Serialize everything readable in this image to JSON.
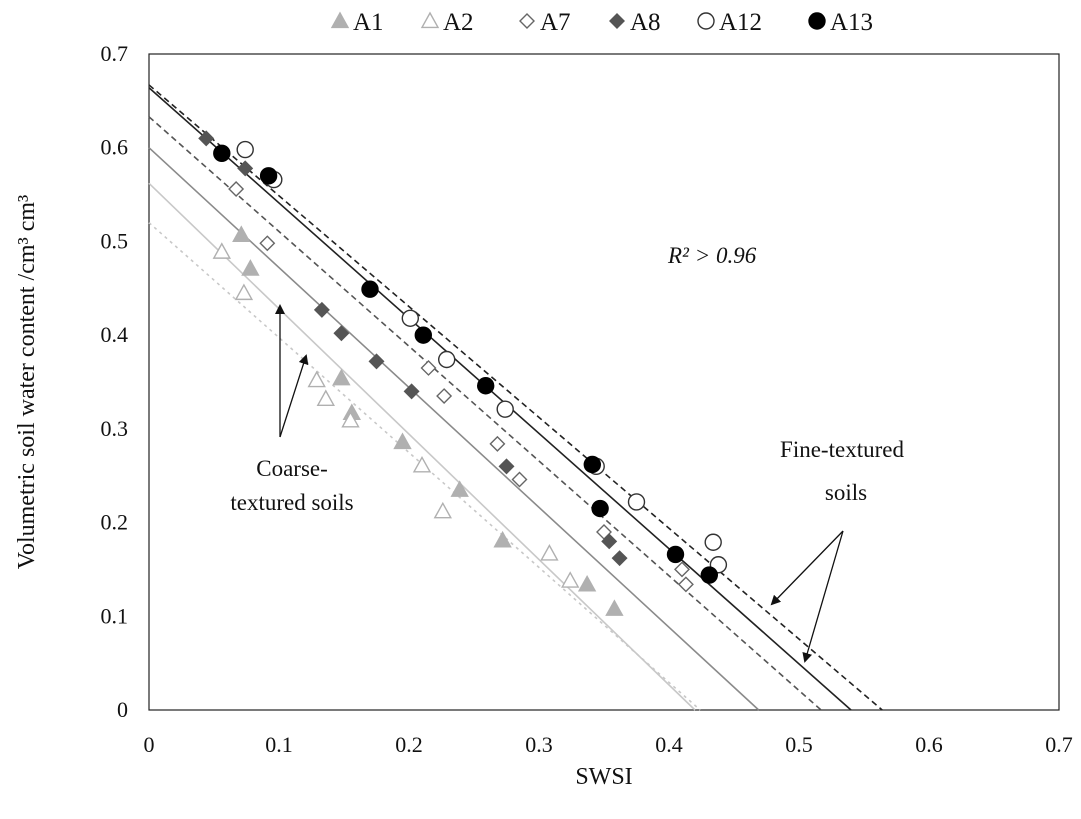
{
  "chart_data": {
    "type": "scatter",
    "xlabel": "SWSI",
    "ylabel": "Volumetric soil water content /cm³ cm³",
    "xlim": [
      0,
      0.7
    ],
    "ylim": [
      0,
      0.7
    ],
    "xticks": [
      "0",
      "0.1",
      "0.2",
      "0.3",
      "0.4",
      "0.5",
      "0.6",
      "0.7"
    ],
    "yticks": [
      "0",
      "0.1",
      "0.2",
      "0.3",
      "0.4",
      "0.5",
      "0.6",
      "0.7"
    ],
    "grid": false,
    "legend_position": "top",
    "series": [
      {
        "name": "A1",
        "marker": "triangle-filled",
        "color": "#b0b0b0",
        "points": [
          [
            0.071,
            0.507
          ],
          [
            0.078,
            0.471
          ],
          [
            0.148,
            0.354
          ],
          [
            0.156,
            0.317
          ],
          [
            0.195,
            0.286
          ],
          [
            0.239,
            0.235
          ],
          [
            0.272,
            0.181
          ],
          [
            0.337,
            0.134
          ],
          [
            0.358,
            0.108
          ]
        ]
      },
      {
        "name": "A2",
        "marker": "triangle-open",
        "color": "#b0b0b0",
        "points": [
          [
            0.056,
            0.489
          ],
          [
            0.073,
            0.445
          ],
          [
            0.129,
            0.352
          ],
          [
            0.136,
            0.332
          ],
          [
            0.155,
            0.309
          ],
          [
            0.21,
            0.261
          ],
          [
            0.226,
            0.212
          ],
          [
            0.308,
            0.167
          ],
          [
            0.324,
            0.138
          ]
        ]
      },
      {
        "name": "A7",
        "marker": "diamond-open",
        "color": "#666666",
        "points": [
          [
            0.067,
            0.556
          ],
          [
            0.091,
            0.498
          ],
          [
            0.215,
            0.365
          ],
          [
            0.227,
            0.335
          ],
          [
            0.268,
            0.284
          ],
          [
            0.285,
            0.246
          ],
          [
            0.35,
            0.19
          ],
          [
            0.41,
            0.15
          ],
          [
            0.413,
            0.134
          ]
        ]
      },
      {
        "name": "A8",
        "marker": "diamond-filled",
        "color": "#555555",
        "points": [
          [
            0.044,
            0.61
          ],
          [
            0.074,
            0.578
          ],
          [
            0.133,
            0.427
          ],
          [
            0.148,
            0.402
          ],
          [
            0.175,
            0.372
          ],
          [
            0.202,
            0.34
          ],
          [
            0.275,
            0.26
          ],
          [
            0.354,
            0.18
          ],
          [
            0.362,
            0.162
          ]
        ]
      },
      {
        "name": "A12",
        "marker": "circle-open",
        "color": "#333333",
        "points": [
          [
            0.074,
            0.598
          ],
          [
            0.096,
            0.566
          ],
          [
            0.201,
            0.418
          ],
          [
            0.229,
            0.374
          ],
          [
            0.274,
            0.321
          ],
          [
            0.344,
            0.26
          ],
          [
            0.375,
            0.222
          ],
          [
            0.434,
            0.179
          ],
          [
            0.438,
            0.155
          ]
        ]
      },
      {
        "name": "A13",
        "marker": "circle-filled",
        "color": "#000000",
        "points": [
          [
            0.056,
            0.594
          ],
          [
            0.092,
            0.57
          ],
          [
            0.17,
            0.449
          ],
          [
            0.211,
            0.4
          ],
          [
            0.259,
            0.346
          ],
          [
            0.341,
            0.262
          ],
          [
            0.347,
            0.215
          ],
          [
            0.405,
            0.166
          ],
          [
            0.431,
            0.144
          ]
        ]
      }
    ],
    "fit_lines": [
      {
        "style": "dotted",
        "color": "#c8c8c8",
        "x0": 0.0,
        "y0": 0.52,
        "x1": 0.424,
        "y1": 0.0
      },
      {
        "style": "solid",
        "color": "#c8c8c8",
        "x0": 0.0,
        "y0": 0.562,
        "x1": 0.42,
        "y1": 0.0
      },
      {
        "style": "solid",
        "color": "#8a8a8a",
        "x0": 0.0,
        "y0": 0.6,
        "x1": 0.469,
        "y1": 0.0
      },
      {
        "style": "dashed",
        "color": "#555555",
        "x0": 0.0,
        "y0": 0.633,
        "x1": 0.517,
        "y1": 0.0
      },
      {
        "style": "dashed",
        "color": "#222222",
        "x0": 0.0,
        "y0": 0.667,
        "x1": 0.564,
        "y1": 0.0
      },
      {
        "style": "solid",
        "color": "#222222",
        "x0": 0.0,
        "y0": 0.664,
        "x1": 0.54,
        "y1": 0.0
      }
    ],
    "annotations": {
      "r2": "R² > 0.96",
      "coarse_line1": "Coarse-",
      "coarse_line2": "textured  soils",
      "fine_line1": "Fine-textured",
      "fine_line2": "soils"
    }
  }
}
